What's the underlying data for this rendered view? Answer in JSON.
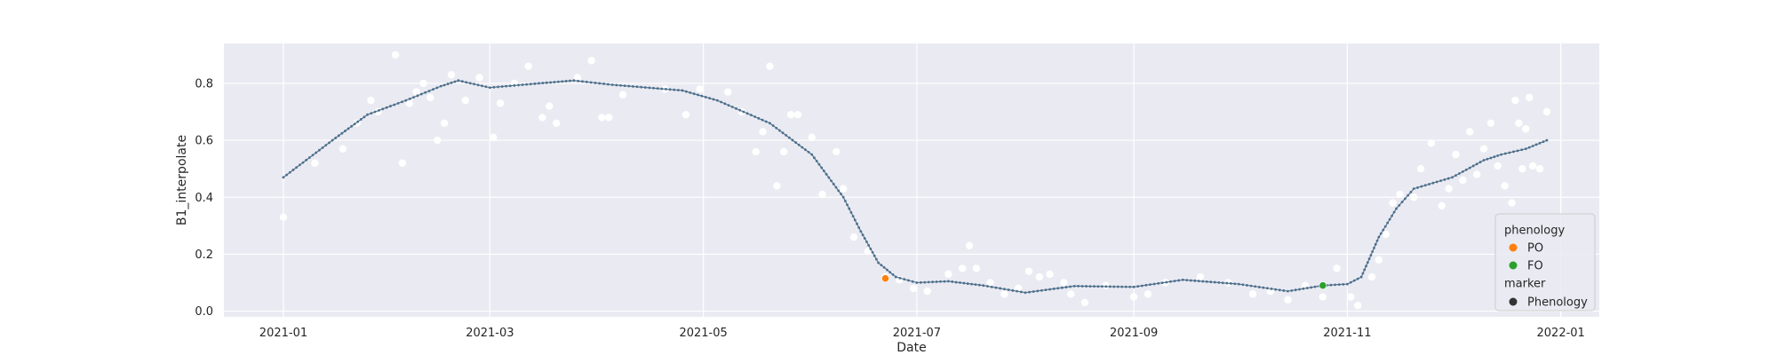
{
  "chart_data": {
    "type": "scatter",
    "xlabel": "Date",
    "ylabel": "B1_interpolate",
    "xlim": [
      "2020-12-15",
      "2022-01-12"
    ],
    "ylim": [
      -0.02,
      0.94
    ],
    "x_ticks": [
      "2021-01",
      "2021-03",
      "2021-05",
      "2021-07",
      "2021-09",
      "2021-11",
      "2022-01"
    ],
    "y_ticks": [
      "0.0",
      "0.2",
      "0.4",
      "0.6",
      "0.8"
    ],
    "y_tick_values": [
      0.0,
      0.2,
      0.4,
      0.6,
      0.8
    ],
    "grid": true,
    "background": "#eaeaf2",
    "legend": {
      "position": "lower-right",
      "entries": [
        {
          "text": "phenology",
          "kind": "title"
        },
        {
          "text": "PO",
          "kind": "marker",
          "color": "#ff7f0e"
        },
        {
          "text": "FO",
          "kind": "marker",
          "color": "#2ca02c"
        },
        {
          "text": "marker",
          "kind": "title"
        },
        {
          "text": "Phenology",
          "kind": "marker",
          "color": "#333333"
        }
      ]
    },
    "line_color": "#4c6f8a",
    "observations_color": "#ffffff",
    "interpolated_line": [
      [
        "2021-01-01",
        0.47
      ],
      [
        "2021-01-15",
        0.6
      ],
      [
        "2021-01-25",
        0.69
      ],
      [
        "2021-02-05",
        0.74
      ],
      [
        "2021-02-15",
        0.79
      ],
      [
        "2021-02-20",
        0.81
      ],
      [
        "2021-03-01",
        0.785
      ],
      [
        "2021-03-15",
        0.8
      ],
      [
        "2021-03-25",
        0.81
      ],
      [
        "2021-04-05",
        0.795
      ],
      [
        "2021-04-25",
        0.775
      ],
      [
        "2021-05-05",
        0.74
      ],
      [
        "2021-05-20",
        0.66
      ],
      [
        "2021-06-01",
        0.55
      ],
      [
        "2021-06-10",
        0.4
      ],
      [
        "2021-06-15",
        0.28
      ],
      [
        "2021-06-20",
        0.17
      ],
      [
        "2021-06-25",
        0.12
      ],
      [
        "2021-07-01",
        0.1
      ],
      [
        "2021-07-10",
        0.105
      ],
      [
        "2021-07-20",
        0.09
      ],
      [
        "2021-08-01",
        0.065
      ],
      [
        "2021-08-15",
        0.088
      ],
      [
        "2021-09-01",
        0.085
      ],
      [
        "2021-09-15",
        0.11
      ],
      [
        "2021-10-01",
        0.095
      ],
      [
        "2021-10-15",
        0.07
      ],
      [
        "2021-10-25",
        0.09
      ],
      [
        "2021-11-01",
        0.095
      ],
      [
        "2021-11-05",
        0.12
      ],
      [
        "2021-11-10",
        0.26
      ],
      [
        "2021-11-15",
        0.36
      ],
      [
        "2021-11-20",
        0.43
      ],
      [
        "2021-12-01",
        0.47
      ],
      [
        "2021-12-10",
        0.53
      ],
      [
        "2021-12-15",
        0.55
      ],
      [
        "2021-12-22",
        0.57
      ],
      [
        "2021-12-28",
        0.6
      ]
    ],
    "observations": [
      [
        "2021-01-01",
        0.33
      ],
      [
        "2021-01-10",
        0.52
      ],
      [
        "2021-01-18",
        0.57
      ],
      [
        "2021-01-22",
        0.66
      ],
      [
        "2021-01-26",
        0.74
      ],
      [
        "2021-01-28",
        0.7
      ],
      [
        "2021-02-02",
        0.9
      ],
      [
        "2021-02-04",
        0.52
      ],
      [
        "2021-02-06",
        0.73
      ],
      [
        "2021-02-08",
        0.77
      ],
      [
        "2021-02-10",
        0.8
      ],
      [
        "2021-02-12",
        0.75
      ],
      [
        "2021-02-14",
        0.6
      ],
      [
        "2021-02-16",
        0.66
      ],
      [
        "2021-02-18",
        0.83
      ],
      [
        "2021-02-22",
        0.74
      ],
      [
        "2021-02-26",
        0.82
      ],
      [
        "2021-03-02",
        0.61
      ],
      [
        "2021-03-04",
        0.73
      ],
      [
        "2021-03-08",
        0.8
      ],
      [
        "2021-03-12",
        0.86
      ],
      [
        "2021-03-16",
        0.68
      ],
      [
        "2021-03-18",
        0.72
      ],
      [
        "2021-03-20",
        0.66
      ],
      [
        "2021-03-26",
        0.82
      ],
      [
        "2021-03-30",
        0.88
      ],
      [
        "2021-04-02",
        0.68
      ],
      [
        "2021-04-04",
        0.68
      ],
      [
        "2021-04-08",
        0.76
      ],
      [
        "2021-04-20",
        0.78
      ],
      [
        "2021-04-26",
        0.69
      ],
      [
        "2021-04-30",
        0.78
      ],
      [
        "2021-05-08",
        0.77
      ],
      [
        "2021-05-12",
        0.7
      ],
      [
        "2021-05-16",
        0.56
      ],
      [
        "2021-05-18",
        0.63
      ],
      [
        "2021-05-20",
        0.86
      ],
      [
        "2021-05-22",
        0.44
      ],
      [
        "2021-05-24",
        0.56
      ],
      [
        "2021-05-26",
        0.69
      ],
      [
        "2021-05-28",
        0.69
      ],
      [
        "2021-06-01",
        0.61
      ],
      [
        "2021-06-04",
        0.41
      ],
      [
        "2021-06-08",
        0.56
      ],
      [
        "2021-06-10",
        0.43
      ],
      [
        "2021-06-13",
        0.26
      ],
      [
        "2021-06-17",
        0.21
      ],
      [
        "2021-06-22",
        0.12
      ],
      [
        "2021-06-26",
        0.11
      ],
      [
        "2021-06-30",
        0.08
      ],
      [
        "2021-07-04",
        0.07
      ],
      [
        "2021-07-10",
        0.13
      ],
      [
        "2021-07-14",
        0.15
      ],
      [
        "2021-07-16",
        0.23
      ],
      [
        "2021-07-18",
        0.15
      ],
      [
        "2021-07-22",
        0.1
      ],
      [
        "2021-07-26",
        0.06
      ],
      [
        "2021-07-30",
        0.08
      ],
      [
        "2021-08-02",
        0.14
      ],
      [
        "2021-08-05",
        0.12
      ],
      [
        "2021-08-08",
        0.13
      ],
      [
        "2021-08-12",
        0.1
      ],
      [
        "2021-08-14",
        0.06
      ],
      [
        "2021-08-18",
        0.03
      ],
      [
        "2021-08-24",
        0.09
      ],
      [
        "2021-09-01",
        0.05
      ],
      [
        "2021-09-05",
        0.06
      ],
      [
        "2021-09-10",
        0.1
      ],
      [
        "2021-09-20",
        0.12
      ],
      [
        "2021-09-28",
        0.1
      ],
      [
        "2021-10-05",
        0.06
      ],
      [
        "2021-10-10",
        0.07
      ],
      [
        "2021-10-15",
        0.04
      ],
      [
        "2021-10-20",
        0.09
      ],
      [
        "2021-10-25",
        0.05
      ],
      [
        "2021-10-29",
        0.15
      ],
      [
        "2021-11-02",
        0.05
      ],
      [
        "2021-11-04",
        0.02
      ],
      [
        "2021-11-08",
        0.12
      ],
      [
        "2021-11-10",
        0.18
      ],
      [
        "2021-11-12",
        0.27
      ],
      [
        "2021-11-14",
        0.38
      ],
      [
        "2021-11-16",
        0.41
      ],
      [
        "2021-11-20",
        0.4
      ],
      [
        "2021-11-22",
        0.5
      ],
      [
        "2021-11-25",
        0.59
      ],
      [
        "2021-11-28",
        0.37
      ],
      [
        "2021-11-30",
        0.43
      ],
      [
        "2021-12-02",
        0.55
      ],
      [
        "2021-12-04",
        0.46
      ],
      [
        "2021-12-06",
        0.63
      ],
      [
        "2021-12-08",
        0.48
      ],
      [
        "2021-12-10",
        0.57
      ],
      [
        "2021-12-12",
        0.66
      ],
      [
        "2021-12-14",
        0.51
      ],
      [
        "2021-12-16",
        0.44
      ],
      [
        "2021-12-18",
        0.38
      ],
      [
        "2021-12-19",
        0.74
      ],
      [
        "2021-12-20",
        0.66
      ],
      [
        "2021-12-21",
        0.5
      ],
      [
        "2021-12-22",
        0.64
      ],
      [
        "2021-12-23",
        0.75
      ],
      [
        "2021-12-24",
        0.51
      ],
      [
        "2021-12-26",
        0.5
      ],
      [
        "2021-12-28",
        0.7
      ]
    ],
    "phenology_points": [
      {
        "label": "PO",
        "x": "2021-06-22",
        "y": 0.115,
        "color": "#ff7f0e"
      },
      {
        "label": "FO",
        "x": "2021-10-25",
        "y": 0.09,
        "color": "#2ca02c"
      }
    ]
  }
}
